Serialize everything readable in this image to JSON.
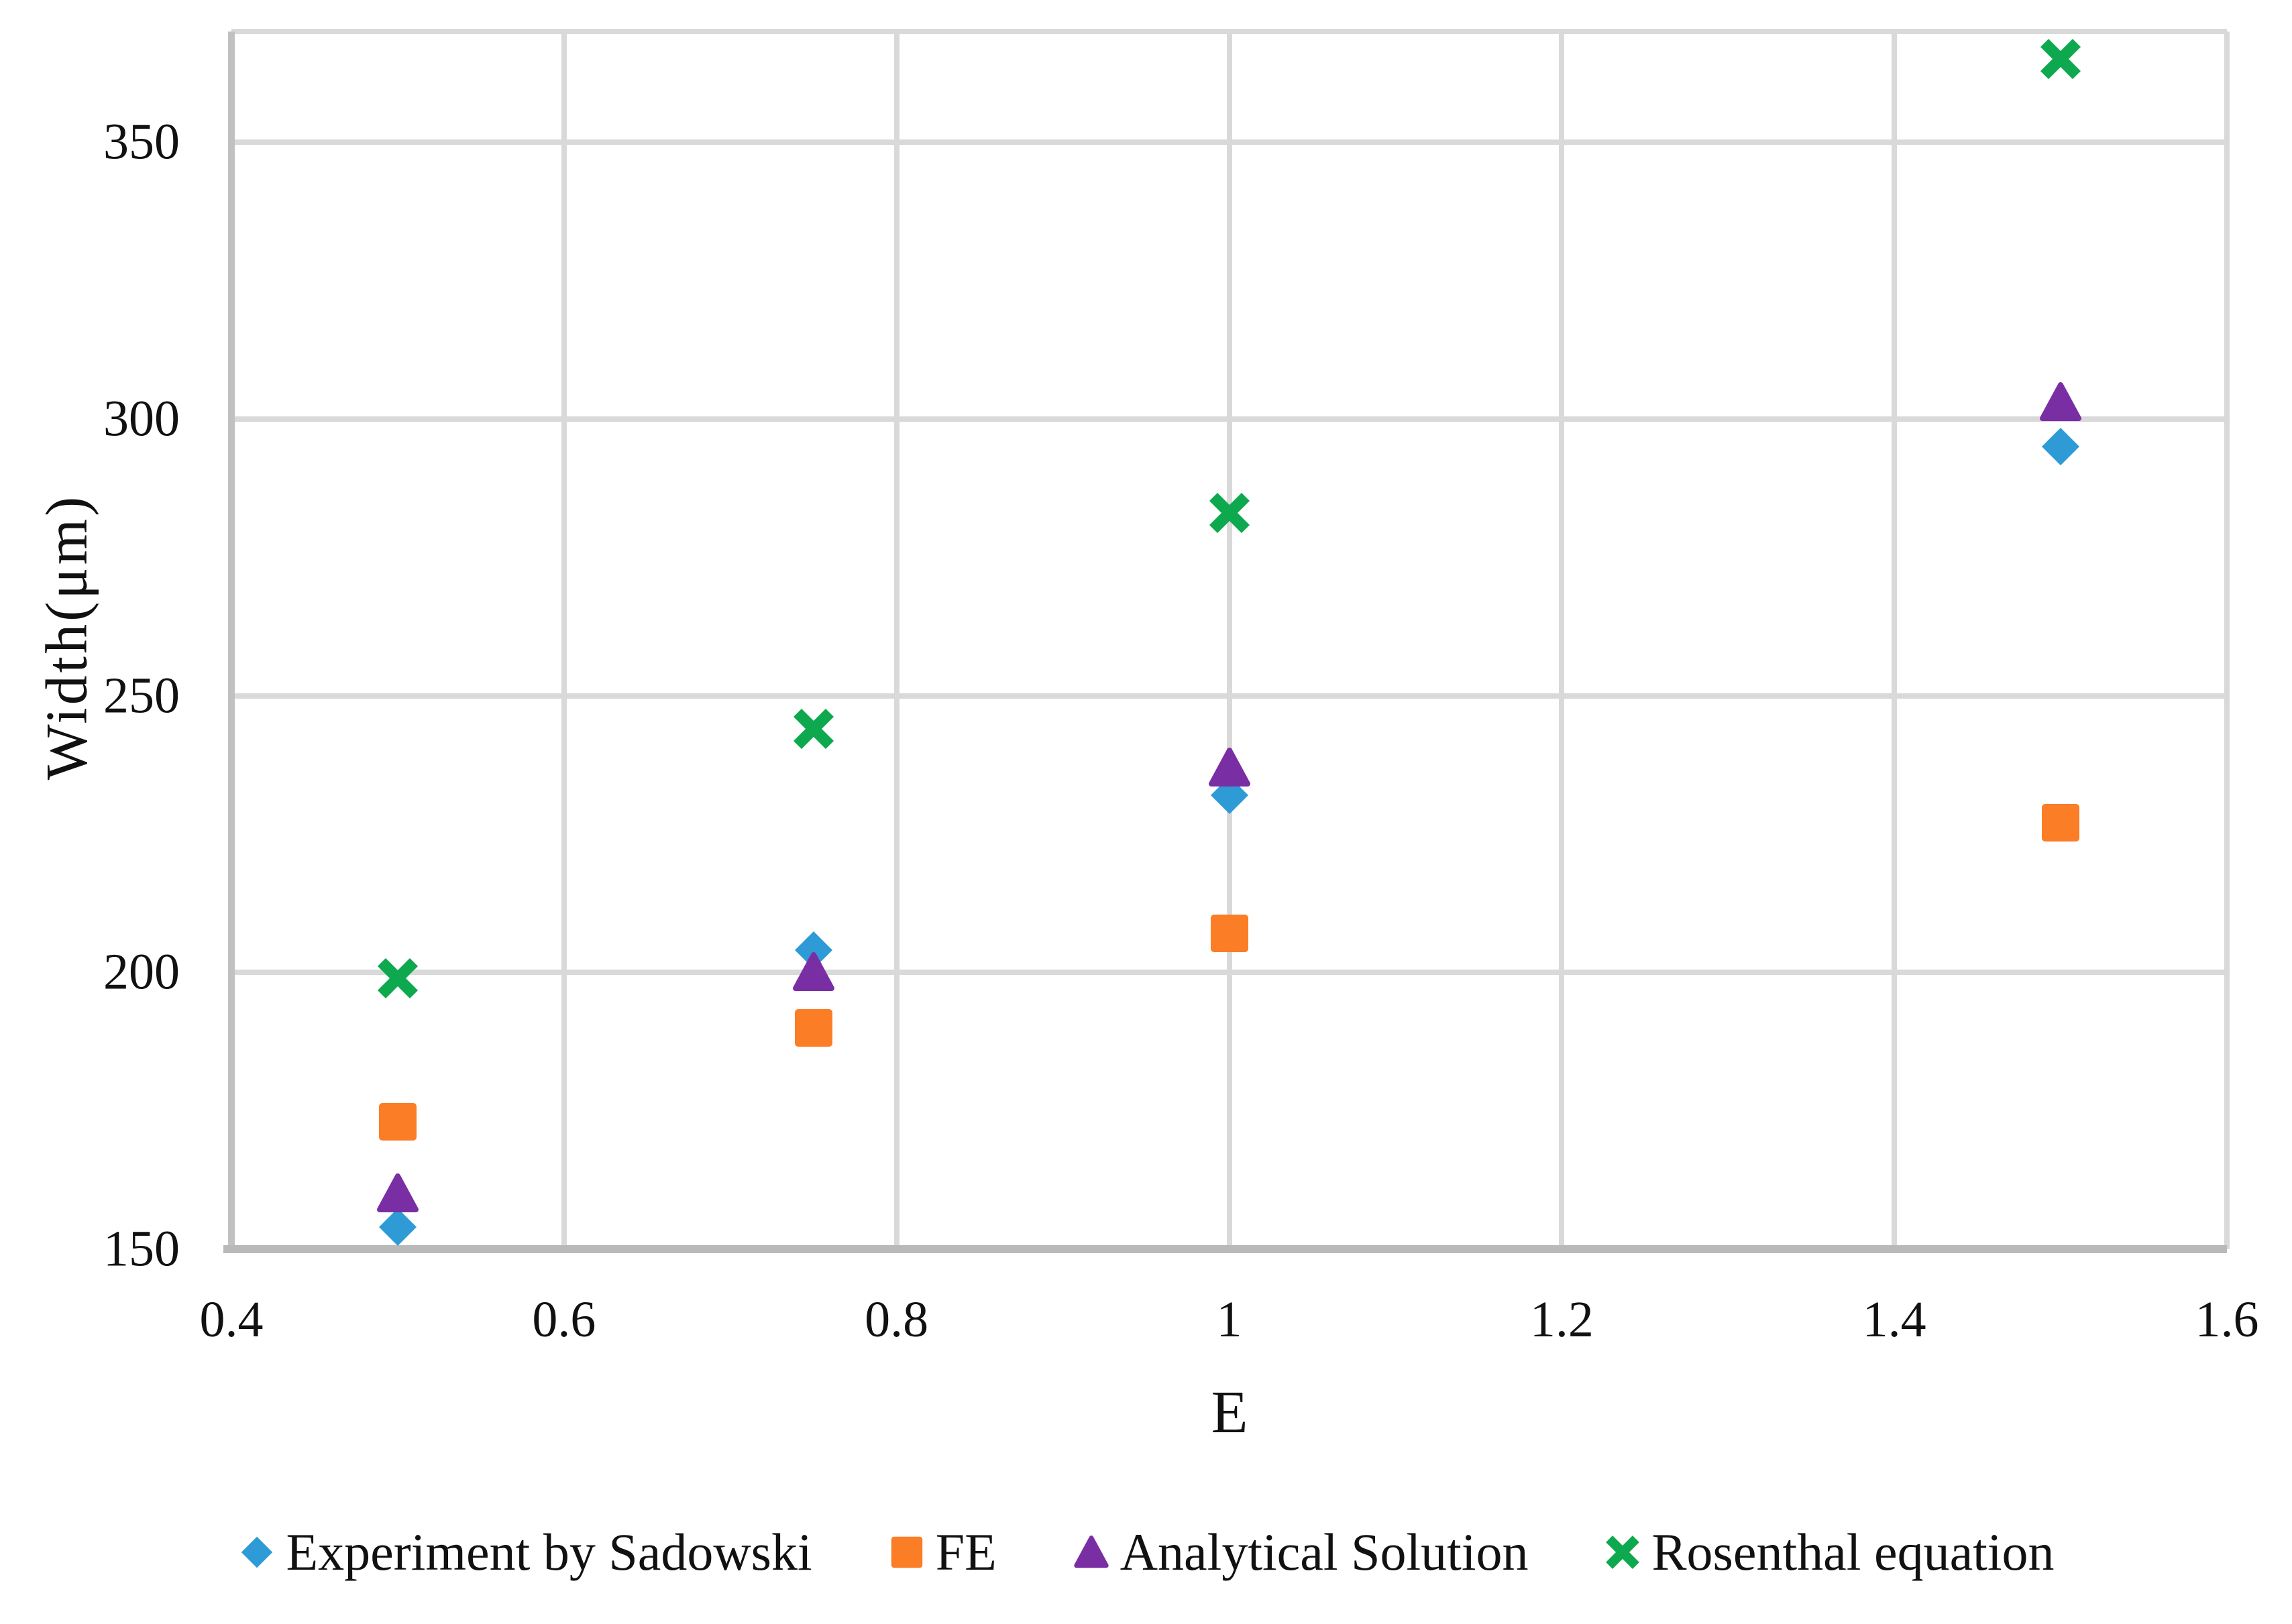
{
  "chart_data": {
    "type": "scatter",
    "title": "",
    "xlabel": "E",
    "ylabel": "Width(μm)",
    "xlim": [
      0.4,
      1.6
    ],
    "ylim": [
      150,
      370
    ],
    "grid": true,
    "legend_position": "bottom",
    "background": "#FFFFFF",
    "x_ticks": [
      0.4,
      0.6,
      0.8,
      1,
      1.2,
      1.4,
      1.6
    ],
    "x_tick_labels": [
      "0.4",
      "0.6",
      "0.8",
      "1",
      "1.2",
      "1.4",
      "1.6"
    ],
    "y_ticks": [
      150,
      200,
      250,
      300,
      350
    ],
    "y_tick_labels": [
      "150",
      "200",
      "250",
      "300",
      "350"
    ],
    "colors": {
      "gridline": "#D9D9D9",
      "axis_line": "#BFBFBF",
      "text": "#111111"
    },
    "x": [
      0.5,
      0.75,
      1,
      1.5
    ],
    "series": [
      {
        "name": "Experiment by Sadowski",
        "marker": "diamond",
        "color": "#2E9BD6",
        "x": [
          0.5,
          0.75,
          1,
          1.5
        ],
        "y": [
          154,
          204,
          232,
          295
        ]
      },
      {
        "name": "FE",
        "marker": "square",
        "color": "#FB7D26",
        "x": [
          0.5,
          0.75,
          1,
          1.5
        ],
        "y": [
          173,
          190,
          207,
          227
        ]
      },
      {
        "name": "Analytical Solution",
        "marker": "triangle",
        "color": "#7A2EA3",
        "x": [
          0.5,
          0.75,
          1,
          1.5
        ],
        "y": [
          160,
          200,
          237,
          303
        ]
      },
      {
        "name": "Rosenthal equation",
        "marker": "x",
        "color": "#0EA94E",
        "x": [
          0.5,
          0.75,
          1,
          1.5
        ],
        "y": [
          199,
          244,
          283,
          365
        ]
      }
    ]
  }
}
